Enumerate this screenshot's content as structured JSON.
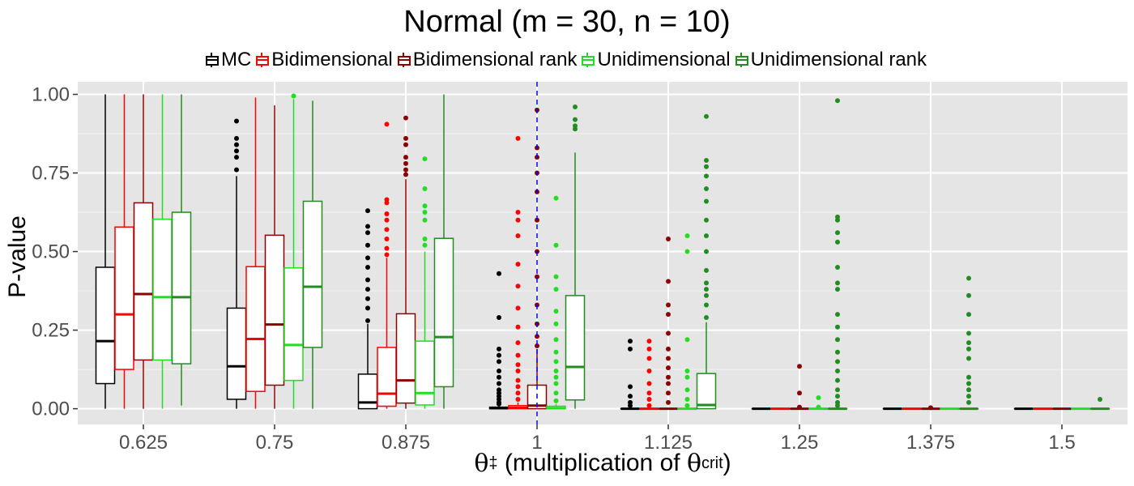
{
  "chart_data": {
    "type": "boxplot",
    "title": "Normal (m = 30, n = 10)",
    "xlabel": {
      "symbol": "θ",
      "symbol_sub": "‡",
      "text_prefix": " (multiplication of ",
      "crit_symbol": "θ",
      "crit_sub": "crit",
      "text_suffix": ")"
    },
    "ylabel": "P-value",
    "ylim": [
      -0.05,
      1.04
    ],
    "y_ticks": [
      "0.00",
      "0.25",
      "0.50",
      "0.75",
      "1.00"
    ],
    "y_tick_values": [
      0,
      0.25,
      0.5,
      0.75,
      1.0
    ],
    "grid": true,
    "legend_position": "top",
    "reference_line": {
      "x_category": "1",
      "color": "#0000ff",
      "style": "dashed"
    },
    "categories": [
      "0.625",
      "0.75",
      "0.875",
      "1",
      "1.125",
      "1.25",
      "1.375",
      "1.5"
    ],
    "series": [
      {
        "name": "MC",
        "color": "#000000",
        "boxes": [
          {
            "min": 0.0,
            "q1": 0.08,
            "median": 0.215,
            "q3": 0.45,
            "max": 1.0,
            "outliers": []
          },
          {
            "min": 0.0,
            "q1": 0.03,
            "median": 0.135,
            "q3": 0.32,
            "max": 0.74,
            "outliers": [
              0.76,
              0.8,
              0.82,
              0.84,
              0.86,
              0.915
            ]
          },
          {
            "min": 0.0,
            "q1": 0.0,
            "median": 0.02,
            "q3": 0.11,
            "max": 0.27,
            "outliers": [
              0.28,
              0.32,
              0.35,
              0.38,
              0.41,
              0.45,
              0.48,
              0.52,
              0.56,
              0.58,
              0.63
            ]
          },
          {
            "min": 0.0,
            "q1": 0.0,
            "median": 0.002,
            "q3": 0.005,
            "max": 0.01,
            "outliers": [
              0.015,
              0.02,
              0.03,
              0.04,
              0.05,
              0.06,
              0.08,
              0.1,
              0.12,
              0.15,
              0.17,
              0.19,
              0.29,
              0.43
            ]
          },
          {
            "min": 0.0,
            "q1": 0.0,
            "median": 0.0,
            "q3": 0.0,
            "max": 0.0,
            "outliers": [
              0.01,
              0.02,
              0.04,
              0.07,
              0.19,
              0.215
            ]
          },
          {
            "min": 0.0,
            "q1": 0.0,
            "median": 0.0,
            "q3": 0.0,
            "max": 0.0,
            "outliers": []
          },
          {
            "min": 0.0,
            "q1": 0.0,
            "median": 0.0,
            "q3": 0.0,
            "max": 0.0,
            "outliers": []
          },
          {
            "min": 0.0,
            "q1": 0.0,
            "median": 0.0,
            "q3": 0.0,
            "max": 0.0,
            "outliers": []
          }
        ]
      },
      {
        "name": "Bidimensional",
        "color": "#ff0000",
        "boxes": [
          {
            "min": 0.0,
            "q1": 0.125,
            "median": 0.3,
            "q3": 0.578,
            "max": 1.0,
            "outliers": []
          },
          {
            "min": 0.0,
            "q1": 0.055,
            "median": 0.222,
            "q3": 0.452,
            "max": 0.99,
            "outliers": []
          },
          {
            "min": 0.0,
            "q1": 0.008,
            "median": 0.048,
            "q3": 0.195,
            "max": 0.48,
            "outliers": [
              0.49,
              0.51,
              0.54,
              0.57,
              0.6,
              0.62,
              0.655,
              0.665,
              0.905
            ]
          },
          {
            "min": 0.0,
            "q1": 0.0,
            "median": 0.003,
            "q3": 0.01,
            "max": 0.02,
            "outliers": [
              0.03,
              0.05,
              0.07,
              0.09,
              0.12,
              0.14,
              0.17,
              0.21,
              0.26,
              0.32,
              0.39,
              0.46,
              0.55,
              0.6,
              0.625,
              0.86
            ]
          },
          {
            "min": 0.0,
            "q1": 0.0,
            "median": 0.0,
            "q3": 0.0,
            "max": 0.0,
            "outliers": [
              0.01,
              0.03,
              0.05,
              0.08,
              0.12,
              0.16,
              0.19,
              0.215
            ]
          },
          {
            "min": 0.0,
            "q1": 0.0,
            "median": 0.0,
            "q3": 0.0,
            "max": 0.0,
            "outliers": []
          },
          {
            "min": 0.0,
            "q1": 0.0,
            "median": 0.0,
            "q3": 0.0,
            "max": 0.0,
            "outliers": []
          },
          {
            "min": 0.0,
            "q1": 0.0,
            "median": 0.0,
            "q3": 0.0,
            "max": 0.0,
            "outliers": []
          }
        ]
      },
      {
        "name": "Bidimensional rank",
        "color": "#8b0000",
        "boxes": [
          {
            "min": 0.0,
            "q1": 0.155,
            "median": 0.365,
            "q3": 0.655,
            "max": 1.0,
            "outliers": []
          },
          {
            "min": 0.0,
            "q1": 0.075,
            "median": 0.268,
            "q3": 0.552,
            "max": 0.965,
            "outliers": []
          },
          {
            "min": 0.0,
            "q1": 0.018,
            "median": 0.09,
            "q3": 0.302,
            "max": 0.73,
            "outliers": [
              0.745,
              0.76,
              0.78,
              0.8,
              0.84,
              0.86,
              0.925
            ]
          },
          {
            "min": 0.0,
            "q1": 0.0,
            "median": 0.01,
            "q3": 0.075,
            "max": 0.19,
            "outliers": [
              0.2,
              0.23,
              0.27,
              0.33,
              0.42,
              0.5,
              0.6,
              0.69,
              0.75,
              0.8,
              0.83,
              0.95
            ]
          },
          {
            "min": 0.0,
            "q1": 0.0,
            "median": 0.0,
            "q3": 0.0,
            "max": 0.0,
            "outliers": [
              0.02,
              0.05,
              0.08,
              0.1,
              0.13,
              0.16,
              0.19,
              0.24,
              0.3,
              0.33,
              0.405,
              0.54
            ]
          },
          {
            "min": 0.0,
            "q1": 0.0,
            "median": 0.0,
            "q3": 0.0,
            "max": 0.0,
            "outliers": [
              0.005,
              0.05,
              0.135
            ]
          },
          {
            "min": 0.0,
            "q1": 0.0,
            "median": 0.0,
            "q3": 0.0,
            "max": 0.0,
            "outliers": [
              0.003
            ]
          },
          {
            "min": 0.0,
            "q1": 0.0,
            "median": 0.0,
            "q3": 0.0,
            "max": 0.0,
            "outliers": []
          }
        ]
      },
      {
        "name": "Unidimensional",
        "color": "#22dd22",
        "boxes": [
          {
            "min": 0.0,
            "q1": 0.155,
            "median": 0.355,
            "q3": 0.603,
            "max": 1.0,
            "outliers": []
          },
          {
            "min": 0.0,
            "q1": 0.09,
            "median": 0.203,
            "q3": 0.448,
            "max": 0.985,
            "outliers": [
              0.995
            ]
          },
          {
            "min": 0.0,
            "q1": 0.012,
            "median": 0.05,
            "q3": 0.215,
            "max": 0.5,
            "outliers": [
              0.52,
              0.54,
              0.6,
              0.625,
              0.645,
              0.7,
              0.795
            ]
          },
          {
            "min": 0.0,
            "q1": 0.0,
            "median": 0.002,
            "q3": 0.008,
            "max": 0.015,
            "outliers": [
              0.025,
              0.05,
              0.08,
              0.1,
              0.12,
              0.15,
              0.18,
              0.22,
              0.27,
              0.31,
              0.38,
              0.42,
              0.52,
              0.67
            ]
          },
          {
            "min": 0.0,
            "q1": 0.0,
            "median": 0.0,
            "q3": 0.0,
            "max": 0.0,
            "outliers": [
              0.01,
              0.03,
              0.06,
              0.1,
              0.12,
              0.22,
              0.5,
              0.55
            ]
          },
          {
            "min": 0.0,
            "q1": 0.0,
            "median": 0.0,
            "q3": 0.0,
            "max": 0.0,
            "outliers": [
              0.005,
              0.035
            ]
          },
          {
            "min": 0.0,
            "q1": 0.0,
            "median": 0.0,
            "q3": 0.0,
            "max": 0.0,
            "outliers": []
          },
          {
            "min": 0.0,
            "q1": 0.0,
            "median": 0.0,
            "q3": 0.0,
            "max": 0.0,
            "outliers": []
          }
        ]
      },
      {
        "name": "Unidimensional rank",
        "color": "#228b22",
        "boxes": [
          {
            "min": 0.01,
            "q1": 0.143,
            "median": 0.355,
            "q3": 0.625,
            "max": 1.0,
            "outliers": []
          },
          {
            "min": 0.0,
            "q1": 0.195,
            "median": 0.388,
            "q3": 0.66,
            "max": 0.98,
            "outliers": []
          },
          {
            "min": 0.0,
            "q1": 0.07,
            "median": 0.228,
            "q3": 0.542,
            "max": 1.0,
            "outliers": []
          },
          {
            "min": 0.0,
            "q1": 0.028,
            "median": 0.133,
            "q3": 0.36,
            "max": 0.815,
            "outliers": [
              0.89,
              0.9,
              0.92,
              0.96
            ]
          },
          {
            "min": 0.0,
            "q1": 0.0,
            "median": 0.012,
            "q3": 0.112,
            "max": 0.275,
            "outliers": [
              0.29,
              0.33,
              0.36,
              0.38,
              0.4,
              0.44,
              0.5,
              0.55,
              0.6,
              0.66,
              0.7,
              0.74,
              0.77,
              0.79,
              0.93
            ]
          },
          {
            "min": 0.0,
            "q1": 0.0,
            "median": 0.0,
            "q3": 0.0,
            "max": 0.0,
            "outliers": [
              0.01,
              0.02,
              0.04,
              0.06,
              0.09,
              0.12,
              0.15,
              0.18,
              0.22,
              0.26,
              0.3,
              0.38,
              0.4,
              0.45,
              0.53,
              0.56,
              0.6,
              0.61,
              0.98
            ]
          },
          {
            "min": 0.0,
            "q1": 0.0,
            "median": 0.0,
            "q3": 0.0,
            "max": 0.0,
            "outliers": [
              0.02,
              0.04,
              0.06,
              0.08,
              0.1,
              0.16,
              0.19,
              0.21,
              0.24,
              0.3,
              0.36,
              0.415
            ]
          },
          {
            "min": 0.0,
            "q1": 0.0,
            "median": 0.0,
            "q3": 0.0,
            "max": 0.0,
            "outliers": [
              0.03
            ]
          }
        ]
      }
    ]
  }
}
